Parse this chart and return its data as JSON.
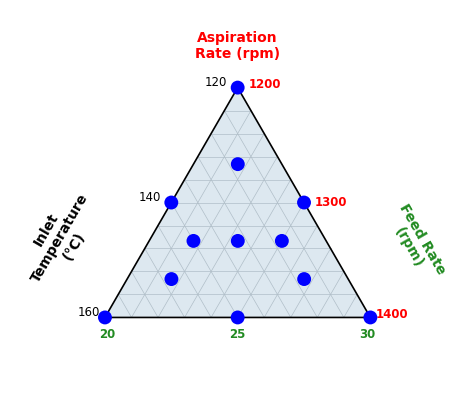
{
  "top_label": "Aspiration\nRate (rpm)",
  "left_label": "Inlet\nTemperature\n(°C)",
  "right_label": "Feed Rate\n(rpm)",
  "top_label_color": "#ff0000",
  "left_label_color": "#000000",
  "right_label_color": "#228B22",
  "aspiration_tick_color": "#ff0000",
  "feed_rate_tick_color": "#228B22",
  "inlet_temp_tick_color": "#000000",
  "dot_color": "#0000ff",
  "dot_size": 100,
  "triangle_fill": "#dde8f0",
  "grid_color": "#b0bec8",
  "grid_linewidth": 0.5,
  "triangle_linewidth": 1.2,
  "n_grid_lines": 10,
  "design_points": [
    [
      1.0,
      0.0,
      0.0
    ],
    [
      0.5,
      0.5,
      0.0
    ],
    [
      0.5,
      0.0,
      0.5
    ],
    [
      0.0,
      1.0,
      0.0
    ],
    [
      0.0,
      0.0,
      1.0
    ],
    [
      0.0,
      0.5,
      0.5
    ],
    [
      0.333,
      0.333,
      0.334
    ],
    [
      0.667,
      0.167,
      0.167
    ],
    [
      0.167,
      0.667,
      0.167
    ],
    [
      0.167,
      0.167,
      0.667
    ],
    [
      0.333,
      0.5,
      0.167
    ],
    [
      0.333,
      0.167,
      0.5
    ]
  ]
}
